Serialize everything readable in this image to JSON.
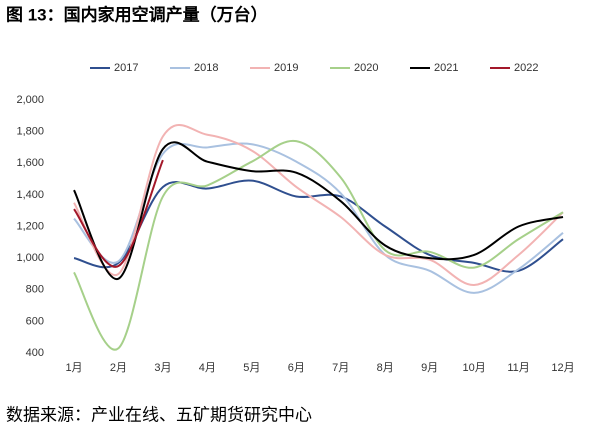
{
  "chart_data": {
    "type": "line",
    "title": "图 13：国内家用空调产量（万台）",
    "source": "数据来源：产业在线、五矿期货研究中心",
    "categories": [
      "1月",
      "2月",
      "3月",
      "4月",
      "5月",
      "6月",
      "7月",
      "8月",
      "9月",
      "10月",
      "11月",
      "12月"
    ],
    "ylim": [
      400,
      2000
    ],
    "yticks": [
      400,
      600,
      800,
      {
        "value": 1000,
        "label": "1,000"
      },
      {
        "value": 1200,
        "label": "1,200"
      },
      {
        "value": 1400,
        "label": "1,400"
      },
      {
        "value": 1600,
        "label": "1,600"
      },
      {
        "value": 1800,
        "label": "1,800"
      },
      {
        "value": 2000,
        "label": "2,000"
      }
    ],
    "grid": false,
    "legend": "top",
    "series": [
      {
        "name": "2017",
        "color": "#2f4f8f",
        "values": [
          1000,
          970,
          1450,
          1440,
          1490,
          1390,
          1390,
          1200,
          1020,
          970,
          920,
          1120
        ]
      },
      {
        "name": "2018",
        "color": "#a9c1e0",
        "values": [
          1250,
          980,
          1660,
          1700,
          1720,
          1610,
          1410,
          1020,
          920,
          780,
          930,
          1160
        ]
      },
      {
        "name": "2019",
        "color": "#f2b3b3",
        "values": [
          1350,
          900,
          1770,
          1780,
          1680,
          1450,
          1260,
          1020,
          990,
          830,
          1020,
          1290
        ]
      },
      {
        "name": "2020",
        "color": "#a6d08a",
        "values": [
          910,
          430,
          1390,
          1460,
          1610,
          1740,
          1510,
          1050,
          1040,
          940,
          1120,
          1290
        ]
      },
      {
        "name": "2021",
        "color": "#000000",
        "values": [
          1430,
          870,
          1690,
          1610,
          1550,
          1540,
          1360,
          1080,
          1000,
          1020,
          1200,
          1260
        ]
      },
      {
        "name": "2022",
        "color": "#a3182a",
        "values": [
          1310,
          950,
          1620,
          null,
          null,
          null,
          null,
          null,
          null,
          null,
          null,
          null
        ]
      }
    ]
  }
}
